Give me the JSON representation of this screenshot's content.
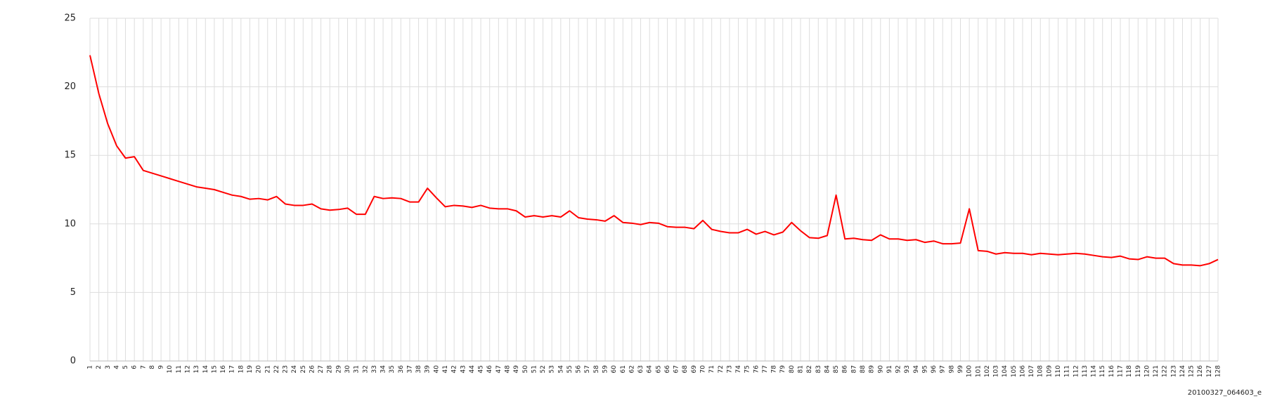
{
  "chart_data": {
    "type": "line",
    "footnote": "20100327_064603_e",
    "categories": [
      "1",
      "2",
      "3",
      "4",
      "5",
      "6",
      "7",
      "8",
      "9",
      "10",
      "11",
      "12",
      "13",
      "14",
      "15",
      "16",
      "17",
      "18",
      "19",
      "20",
      "21",
      "22",
      "23",
      "24",
      "25",
      "26",
      "27",
      "28",
      "29",
      "30",
      "31",
      "32",
      "33",
      "34",
      "35",
      "36",
      "37",
      "38",
      "39",
      "40",
      "41",
      "42",
      "43",
      "44",
      "45",
      "46",
      "47",
      "48",
      "49",
      "50",
      "51",
      "52",
      "53",
      "54",
      "55",
      "56",
      "57",
      "58",
      "59",
      "60",
      "61",
      "62",
      "63",
      "64",
      "65",
      "66",
      "67",
      "68",
      "69",
      "70",
      "71",
      "72",
      "73",
      "74",
      "75",
      "76",
      "77",
      "78",
      "79",
      "80",
      "81",
      "82",
      "83",
      "84",
      "85",
      "86",
      "87",
      "88",
      "89",
      "90",
      "91",
      "92",
      "93",
      "94",
      "95",
      "96",
      "97",
      "98",
      "99",
      "100",
      "101",
      "102",
      "103",
      "104",
      "105",
      "106",
      "107",
      "108",
      "109",
      "110",
      "111",
      "112",
      "113",
      "114",
      "115",
      "116",
      "117",
      "118",
      "119",
      "120",
      "121",
      "122",
      "123",
      "124",
      "125",
      "126",
      "127",
      "128"
    ],
    "values": [
      22.3,
      19.5,
      17.3,
      15.7,
      14.8,
      14.9,
      13.9,
      13.7,
      13.5,
      13.3,
      13.1,
      12.9,
      12.7,
      12.6,
      12.5,
      12.3,
      12.1,
      12.0,
      11.8,
      11.85,
      11.75,
      12.0,
      11.45,
      11.35,
      11.35,
      11.45,
      11.1,
      11.0,
      11.05,
      11.15,
      10.7,
      10.7,
      12.0,
      11.85,
      11.9,
      11.85,
      11.6,
      11.6,
      12.6,
      11.9,
      11.25,
      11.35,
      11.3,
      11.2,
      11.35,
      11.15,
      11.1,
      11.1,
      10.95,
      10.5,
      10.6,
      10.5,
      10.6,
      10.5,
      10.95,
      10.45,
      10.35,
      10.3,
      10.2,
      10.6,
      10.1,
      10.05,
      9.95,
      10.1,
      10.05,
      9.8,
      9.75,
      9.75,
      9.65,
      10.25,
      9.6,
      9.45,
      9.35,
      9.35,
      9.6,
      9.25,
      9.45,
      9.2,
      9.4,
      10.1,
      9.5,
      9.0,
      8.95,
      9.15,
      12.1,
      8.9,
      8.95,
      8.85,
      8.8,
      9.2,
      8.9,
      8.9,
      8.8,
      8.85,
      8.65,
      8.75,
      8.55,
      8.55,
      8.6,
      11.1,
      8.05,
      8.0,
      7.8,
      7.9,
      7.85,
      7.85,
      7.75,
      7.85,
      7.8,
      7.75,
      7.8,
      7.85,
      7.8,
      7.7,
      7.6,
      7.55,
      7.65,
      7.45,
      7.4,
      7.6,
      7.5,
      7.5,
      7.1,
      7.0,
      7.0,
      6.95,
      7.1,
      7.4
    ],
    "color": "#ff0000",
    "ylim": [
      0,
      25
    ],
    "yticks": [
      0,
      5,
      10,
      15,
      20,
      25
    ],
    "grid": true
  }
}
